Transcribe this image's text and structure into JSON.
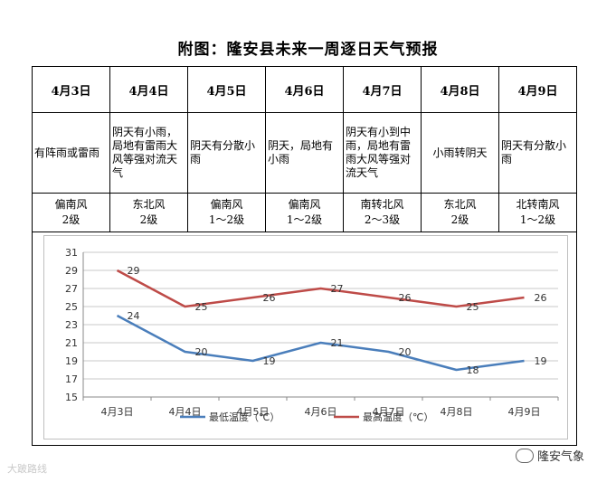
{
  "title": "附图：隆安县未来一周逐日天气预报",
  "days": [
    {
      "date": "4月3日",
      "weather": "有阵雨或雷雨",
      "wind_dir": "偏南风",
      "wind_level": "2级"
    },
    {
      "date": "4月4日",
      "weather": "阴天有小雨，局地有雷雨大风等强对流天气",
      "wind_dir": "东北风",
      "wind_level": "2级"
    },
    {
      "date": "4月5日",
      "weather": "阴天有分散小雨",
      "wind_dir": "偏南风",
      "wind_level": "1～2级"
    },
    {
      "date": "4月6日",
      "weather": "阴天，局地有小雨",
      "wind_dir": "偏南风",
      "wind_level": "1～2级"
    },
    {
      "date": "4月7日",
      "weather": "阴天有小到中雨，局地有雷雨大风等强对流天气",
      "wind_dir": "南转北风",
      "wind_level": "2～3级"
    },
    {
      "date": "4月8日",
      "weather": "小雨转阴天",
      "wind_dir": "东北风",
      "wind_level": "2级"
    },
    {
      "date": "4月9日",
      "weather": "阴天有分散小雨",
      "wind_dir": "北转南风",
      "wind_level": "1～2级"
    }
  ],
  "chart_data": {
    "type": "line",
    "categories": [
      "4月3日",
      "4月4日",
      "4月5日",
      "4月6日",
      "4月7日",
      "4月8日",
      "4月9日"
    ],
    "series": [
      {
        "name": "最低温度（℃）",
        "values": [
          24,
          20,
          19,
          21,
          20,
          18,
          19
        ],
        "color": "#4a7ebb"
      },
      {
        "name": "最高温度（℃）",
        "values": [
          29,
          25,
          26,
          27,
          26,
          25,
          26
        ],
        "color": "#be4b48"
      }
    ],
    "ylim": [
      15,
      31
    ],
    "yticks": [
      15,
      17,
      19,
      21,
      23,
      25,
      27,
      29,
      31
    ],
    "grid": true,
    "legend": "bottom"
  },
  "watermark_left": "大跛路线",
  "watermark_right": "隆安气象"
}
